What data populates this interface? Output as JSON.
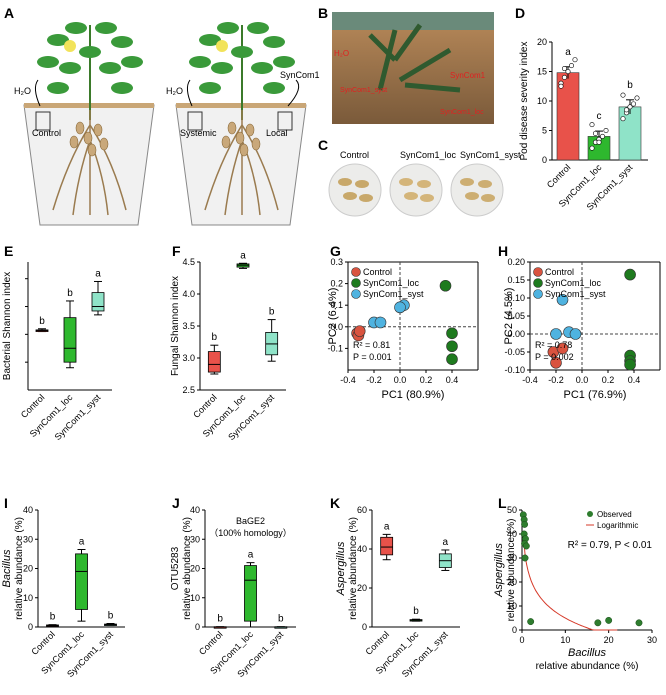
{
  "panel_letters": [
    "A",
    "B",
    "C",
    "D",
    "E",
    "F",
    "G",
    "H",
    "I",
    "J",
    "K",
    "L"
  ],
  "panel_a": {
    "left_labels": {
      "water": "H₂O",
      "pot": "Control"
    },
    "right_labels": {
      "water": "H₂O",
      "syncom": "SynCom1",
      "left": "Systemic",
      "right": "Local"
    }
  },
  "panel_b": {
    "labels": [
      "H₂O",
      "SynCom1_syst",
      "SynCom1",
      "SynCom1_loc"
    ]
  },
  "panel_c": {
    "labels": [
      "Control",
      "SynCom1_loc",
      "SynCom1_syst"
    ]
  },
  "colors": {
    "control": "#e8524a",
    "loc": "#2eb82e",
    "syst": "#8fe3c8",
    "pca_control": "#d9533f",
    "pca_loc": "#1e7a1e",
    "pca_syst": "#4fb3e0",
    "leaf": "#3a9a3a",
    "root": "#9a7b4f",
    "fit_line": "#d63a2a"
  },
  "chart_data": [
    {
      "panel": "D",
      "type": "bar",
      "ylabel": "Pod disease severity index",
      "categories": [
        "Control",
        "SynCom1_loc",
        "SynCom1_syst"
      ],
      "values": [
        14.8,
        4.0,
        9.0
      ],
      "errors": [
        1.0,
        0.9,
        1.2
      ],
      "letters": [
        "a",
        "c",
        "b"
      ],
      "points": [
        [
          13,
          14,
          15,
          16,
          17,
          12.5,
          15.5
        ],
        [
          2,
          3,
          3.5,
          4,
          5,
          6,
          4.5,
          3
        ],
        [
          7,
          8,
          9,
          9.5,
          10.5,
          11,
          8.5
        ]
      ],
      "ylim": [
        0,
        20
      ],
      "yticks": [
        0,
        5,
        10,
        15,
        20
      ]
    },
    {
      "panel": "E",
      "type": "box",
      "ylabel": "Bacterial Shannon index",
      "categories": [
        "Control",
        "SynCom1_loc",
        "SynCom1_syst"
      ],
      "boxes": [
        {
          "min": 6.05,
          "q1": 6.05,
          "median": 6.07,
          "q3": 6.08,
          "max": 6.1
        },
        {
          "min": 5.4,
          "q1": 5.5,
          "median": 5.75,
          "q3": 6.3,
          "max": 6.6
        },
        {
          "min": 6.35,
          "q1": 6.42,
          "median": 6.5,
          "q3": 6.75,
          "max": 6.95
        }
      ],
      "letters": [
        "b",
        "b",
        "a"
      ],
      "ylim": [
        5,
        7.3
      ]
    },
    {
      "panel": "F",
      "type": "box",
      "ylabel": "Fungal Shannon index",
      "categories": [
        "Control",
        "SynCom1_loc",
        "SynCom1_syst"
      ],
      "boxes": [
        {
          "min": 2.75,
          "q1": 2.78,
          "median": 2.9,
          "q3": 3.1,
          "max": 3.2
        },
        {
          "min": 4.4,
          "q1": 4.42,
          "median": 4.45,
          "q3": 4.47,
          "max": 4.48
        },
        {
          "min": 2.95,
          "q1": 3.05,
          "median": 3.22,
          "q3": 3.4,
          "max": 3.6
        }
      ],
      "letters": [
        "b",
        "a",
        "b"
      ],
      "ylim": [
        2.5,
        4.5
      ],
      "yticks": [
        2.5,
        3.0,
        3.5,
        4.0,
        4.5
      ]
    },
    {
      "panel": "G",
      "type": "scatter",
      "xlabel": "PC1 (80.9%)",
      "ylabel": "PC2 (6.4%)",
      "series": [
        {
          "name": "Control",
          "points": [
            [
              -0.33,
              -0.03
            ],
            [
              -0.32,
              -0.04
            ],
            [
              -0.31,
              -0.02
            ]
          ]
        },
        {
          "name": "SynCom1_loc",
          "points": [
            [
              0.35,
              0.19
            ],
            [
              0.4,
              -0.03
            ],
            [
              0.4,
              -0.09
            ],
            [
              0.4,
              -0.15
            ]
          ]
        },
        {
          "name": "SynCom1_syst",
          "points": [
            [
              -0.2,
              0.02
            ],
            [
              -0.15,
              0.02
            ],
            [
              0.03,
              0.1
            ],
            [
              0.0,
              0.09
            ]
          ]
        }
      ],
      "annotation": [
        "R² = 0.81",
        "P = 0.001"
      ],
      "xlim": [
        -0.4,
        0.6
      ],
      "ylim": [
        -0.2,
        0.3
      ],
      "xticks": [
        -0.4,
        -0.2,
        0.0,
        0.2,
        0.4
      ],
      "yticks": [
        -0.1,
        0.0,
        0.1,
        0.2,
        0.3
      ]
    },
    {
      "panel": "H",
      "type": "scatter",
      "xlabel": "PC1 (76.9%)",
      "ylabel": "PC2 (4.5%)",
      "series": [
        {
          "name": "Control",
          "points": [
            [
              -0.22,
              -0.05
            ],
            [
              -0.2,
              -0.08
            ],
            [
              -0.15,
              -0.04
            ]
          ]
        },
        {
          "name": "SynCom1_loc",
          "points": [
            [
              0.37,
              0.165
            ],
            [
              0.37,
              -0.06
            ],
            [
              0.37,
              -0.075
            ],
            [
              0.37,
              -0.085
            ]
          ]
        },
        {
          "name": "SynCom1_syst",
          "points": [
            [
              -0.15,
              0.095
            ],
            [
              -0.2,
              0.0
            ],
            [
              -0.1,
              0.005
            ],
            [
              -0.05,
              0.0
            ]
          ]
        }
      ],
      "annotation": [
        "R² = 0.78",
        "P = 0.002"
      ],
      "xlim": [
        -0.4,
        0.6
      ],
      "ylim": [
        -0.1,
        0.2
      ],
      "xticks": [
        -0.4,
        -0.2,
        0.0,
        0.2,
        0.4
      ],
      "yticks": [
        -0.1,
        -0.05,
        0.0,
        0.05,
        0.1,
        0.15,
        0.2
      ]
    },
    {
      "panel": "I",
      "type": "box",
      "ylabel": "relative abundance (%)",
      "ylabel_italic": "Bacillus",
      "categories": [
        "Control",
        "SynCom1_loc",
        "SynCom1_syst"
      ],
      "boxes": [
        {
          "min": 0.2,
          "q1": 0.4,
          "median": 0.5,
          "q3": 0.7,
          "max": 0.8
        },
        {
          "min": 2,
          "q1": 6,
          "median": 19,
          "q3": 25,
          "max": 26.5
        },
        {
          "min": 0.5,
          "q1": 0.7,
          "median": 0.8,
          "q3": 1.0,
          "max": 1.2
        }
      ],
      "letters": [
        "b",
        "a",
        "b"
      ],
      "ylim": [
        0,
        40
      ],
      "yticks": [
        0,
        10,
        20,
        30,
        40
      ]
    },
    {
      "panel": "J",
      "type": "box",
      "ylabel": "relative abundance (%)",
      "ylabel_top": "OTU5283",
      "inset_title": [
        "BaGE2",
        "（100% homology）"
      ],
      "categories": [
        "Control",
        "SynCom1_loc",
        "SynCom1_syst"
      ],
      "boxes": [
        {
          "min": 0,
          "q1": 0,
          "median": 0,
          "q3": 0.1,
          "max": 0.1
        },
        {
          "min": 0,
          "q1": 2,
          "median": 16,
          "q3": 21,
          "max": 22
        },
        {
          "min": 0,
          "q1": 0,
          "median": 0,
          "q3": 0.1,
          "max": 0.1
        }
      ],
      "letters": [
        "b",
        "a",
        "b"
      ],
      "ylim": [
        0,
        40
      ],
      "yticks": [
        0,
        10,
        20,
        30,
        40
      ]
    },
    {
      "panel": "K",
      "type": "box",
      "ylabel": "relative abundance (%)",
      "ylabel_italic": "Aspergillus",
      "categories": [
        "Control",
        "SynCom1_loc",
        "SynCom1_syst"
      ],
      "boxes": [
        {
          "min": 34.5,
          "q1": 37,
          "median": 41,
          "q3": 46,
          "max": 47.5
        },
        {
          "min": 3,
          "q1": 3.2,
          "median": 3.5,
          "q3": 3.8,
          "max": 4
        },
        {
          "min": 29,
          "q1": 30.5,
          "median": 34,
          "q3": 37.5,
          "max": 39.5
        }
      ],
      "letters": [
        "a",
        "b",
        "a"
      ],
      "ylim": [
        0,
        60
      ],
      "yticks": [
        0,
        20,
        40,
        60
      ]
    },
    {
      "panel": "L",
      "type": "scatter",
      "xlabel": "relative abundance (%)",
      "xlabel_italic": "Bacillus",
      "ylabel": "relative abundance (%)",
      "ylabel_italic": "Aspergillus",
      "series": [
        {
          "name": "Observed",
          "points": [
            [
              0.3,
              48
            ],
            [
              0.5,
              46
            ],
            [
              0.6,
              44
            ],
            [
              0.5,
              40
            ],
            [
              0.8,
              38
            ],
            [
              0.6,
              36
            ],
            [
              1.0,
              35
            ],
            [
              0.7,
              30
            ],
            [
              2.0,
              3.5
            ],
            [
              17.5,
              3
            ],
            [
              20,
              4
            ],
            [
              27,
              3
            ]
          ]
        },
        {
          "name": "Logarithmic",
          "curve": {
            "a": 28,
            "b": -10,
            "x_from": 0.3,
            "x_to": 22
          }
        }
      ],
      "annotation": "R² = 0.79, P < 0.01",
      "xlim": [
        0,
        30
      ],
      "ylim": [
        0,
        50
      ],
      "xticks": [
        0,
        10,
        20,
        30
      ],
      "yticks": [
        0,
        10,
        20,
        30,
        40,
        50
      ]
    }
  ]
}
